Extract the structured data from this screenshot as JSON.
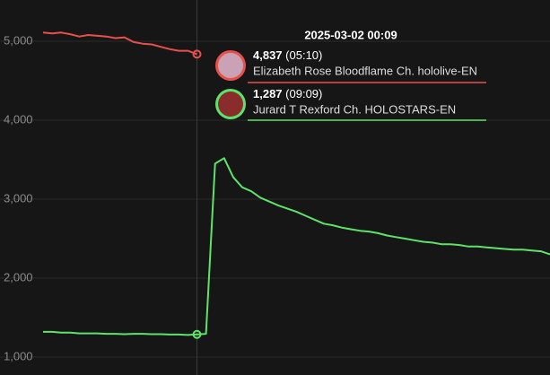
{
  "chart_data": {
    "type": "line",
    "series": [
      {
        "name": "Elizabeth Rose Bloodflame Ch. hololive-EN",
        "color": "#e8504c",
        "values": [
          5110,
          5100,
          5110,
          5090,
          5060,
          5080,
          5070,
          5060,
          5040,
          5050,
          4990,
          4970,
          4960,
          4930,
          4900,
          4880,
          4880,
          4837,
          null,
          null,
          null,
          null,
          null,
          null,
          null,
          null,
          null,
          null,
          null,
          null,
          null,
          null,
          null,
          null,
          null,
          null,
          null,
          null,
          null,
          null,
          null,
          null,
          null,
          null,
          null,
          null,
          null,
          null,
          null,
          null,
          null,
          null,
          null,
          null,
          null,
          null,
          null
        ]
      },
      {
        "name": "Jurard T Rexford Ch. HOLOSTARS-EN",
        "color": "#5ee36a",
        "values": [
          1320,
          1320,
          1310,
          1310,
          1300,
          1300,
          1300,
          1295,
          1295,
          1290,
          1295,
          1295,
          1290,
          1290,
          1285,
          1285,
          1280,
          1287,
          1295,
          3450,
          3520,
          3280,
          3150,
          3100,
          3020,
          2970,
          2920,
          2880,
          2840,
          2790,
          2740,
          2690,
          2670,
          2640,
          2620,
          2600,
          2590,
          2570,
          2540,
          2520,
          2500,
          2480,
          2460,
          2450,
          2430,
          2430,
          2420,
          2400,
          2400,
          2390,
          2380,
          2370,
          2360,
          2360,
          2350,
          2340,
          2300
        ]
      }
    ],
    "ylim": [
      773,
      5523
    ],
    "yticks": [
      {
        "value": 1000,
        "label": "1,000"
      },
      {
        "value": 2000,
        "label": "2,000"
      },
      {
        "value": 3000,
        "label": "3,000"
      },
      {
        "value": 4000,
        "label": "4,000"
      },
      {
        "value": 5000,
        "label": "5,000"
      }
    ],
    "grid": true,
    "tooltip": {
      "title": "2025-03-02 00:09",
      "items": [
        {
          "value_label": "4,837",
          "time": "(05:10)"
        },
        {
          "value_label": "1,287",
          "time": "(09:09)"
        }
      ]
    }
  }
}
